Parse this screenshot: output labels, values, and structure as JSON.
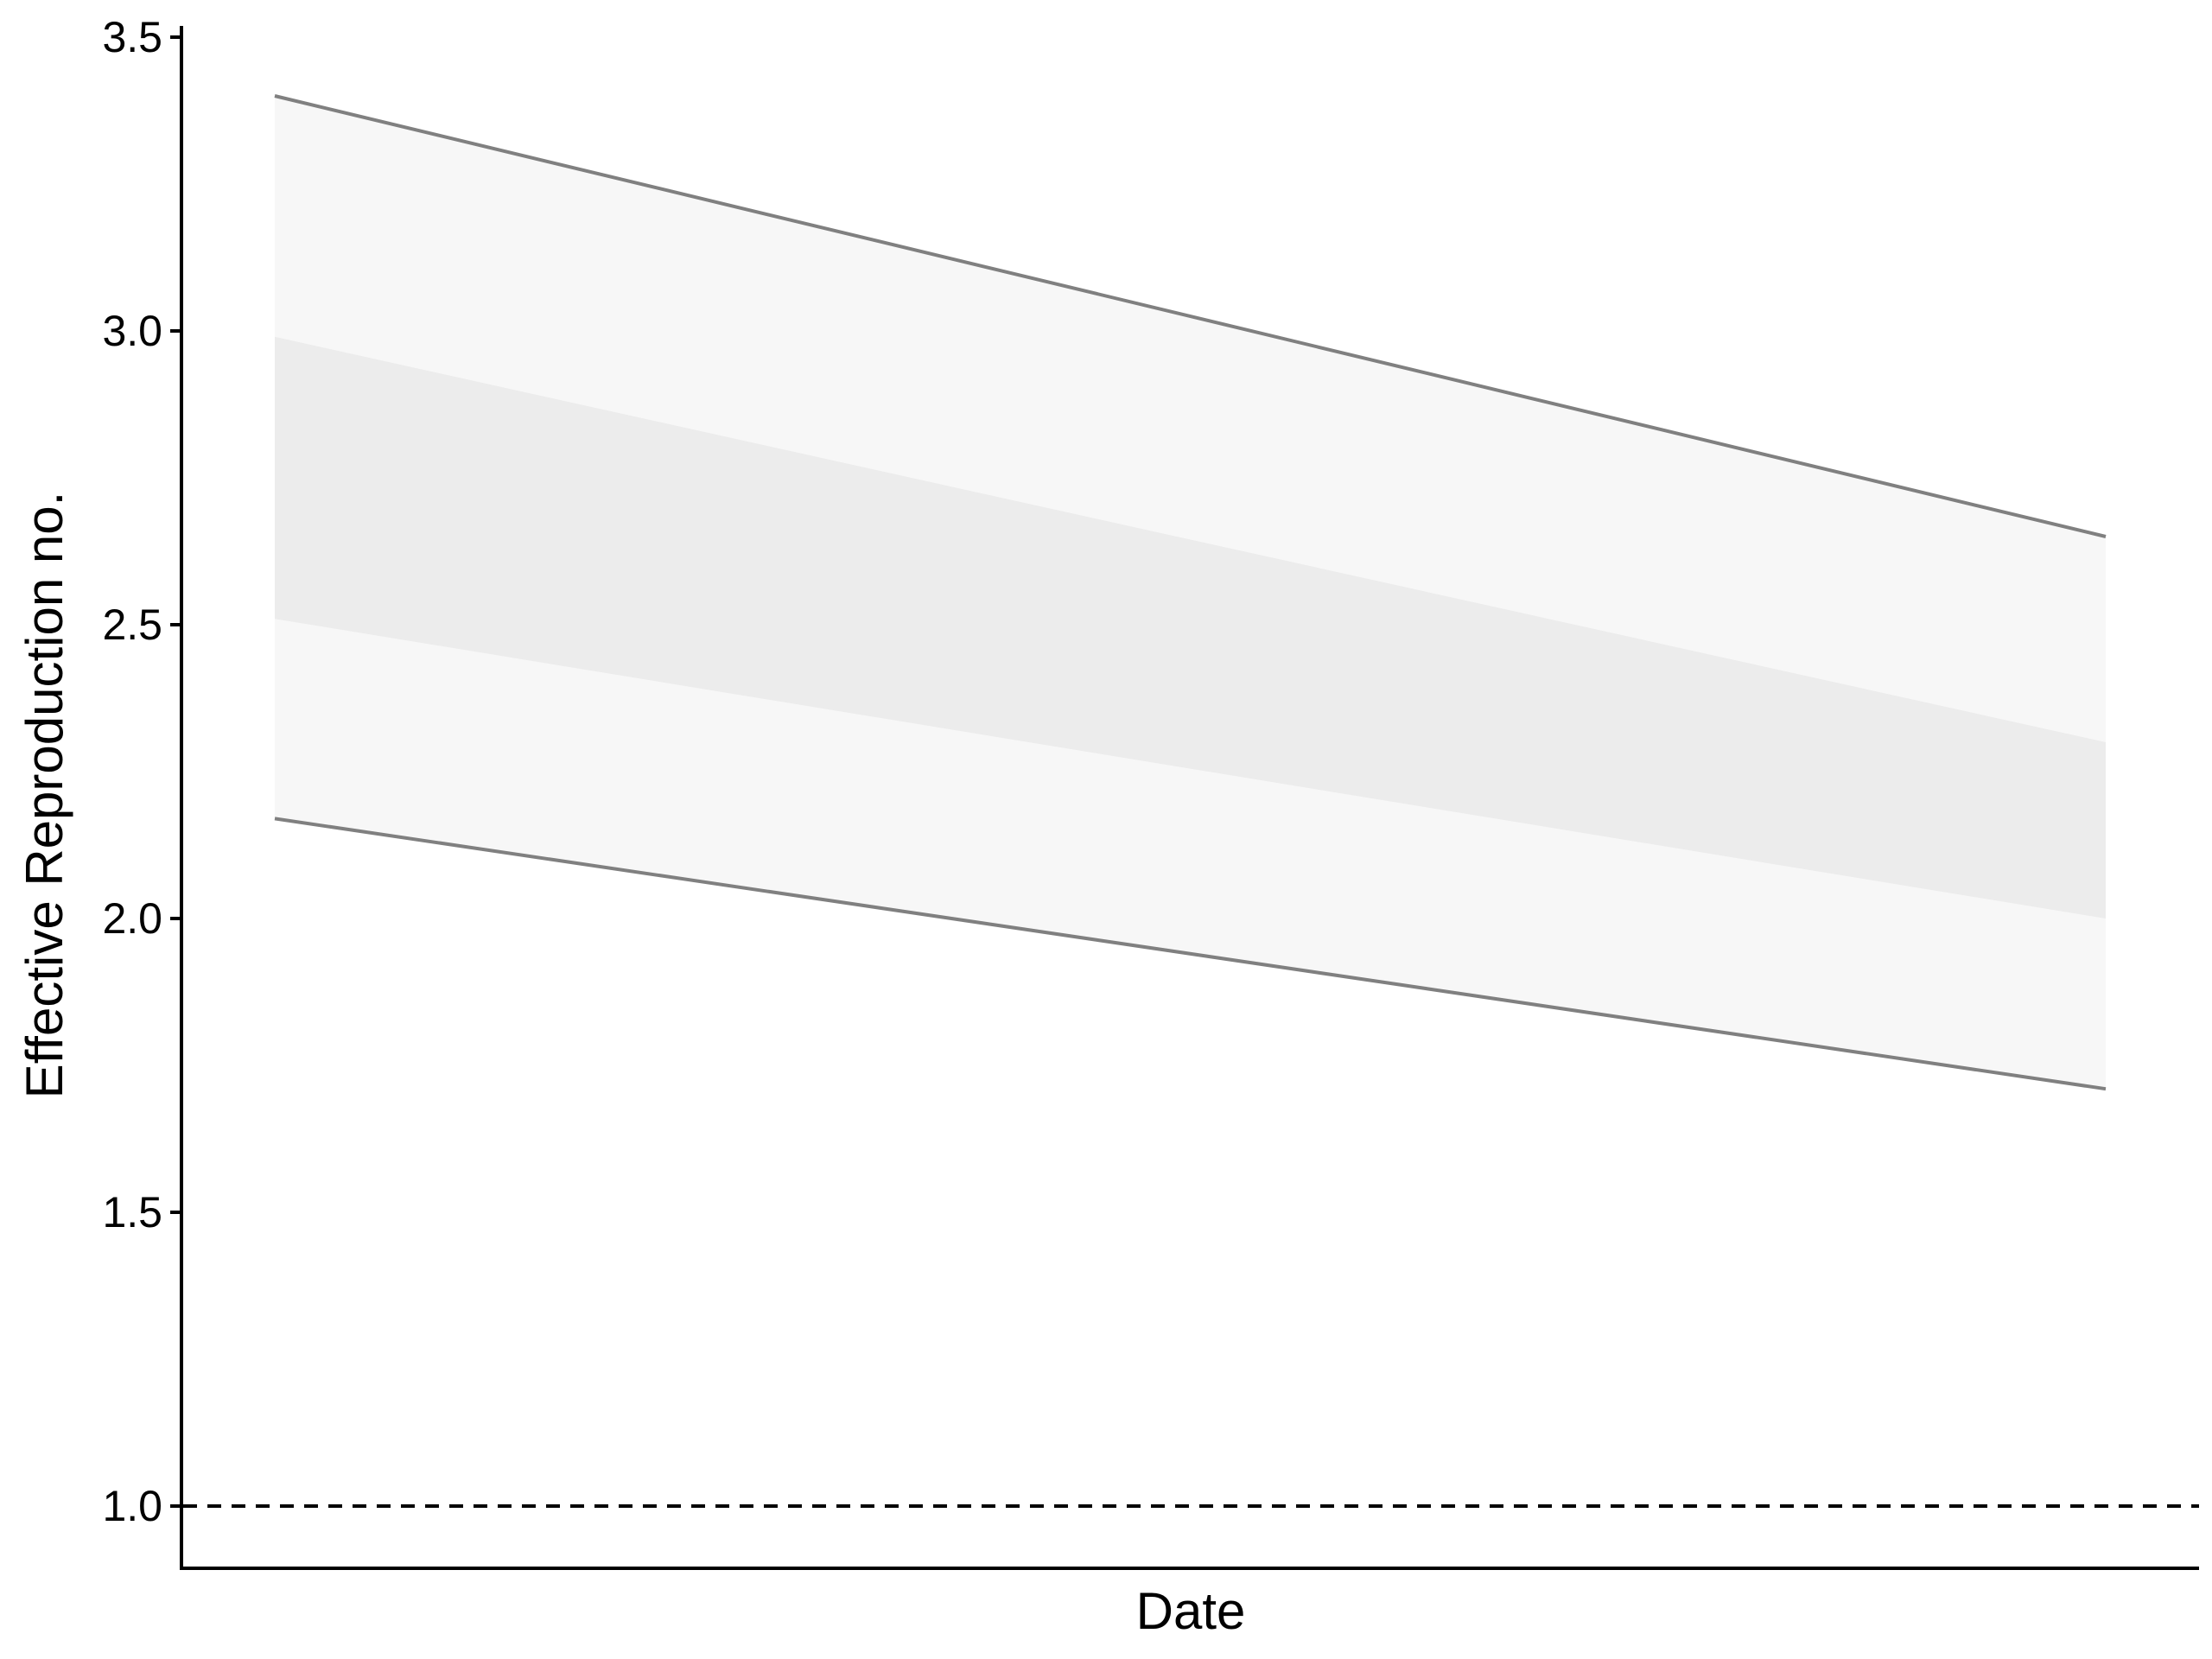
{
  "chart_data": {
    "type": "area",
    "title": "",
    "xlabel": "Date",
    "ylabel": "Effective Reproduction no.",
    "x_tick_labels": [],
    "y_ticks": [
      1.0,
      1.5,
      2.0,
      2.5,
      3.0,
      3.5
    ],
    "y_tick_labels": [
      "1.0",
      "1.5",
      "2.0",
      "2.5",
      "3.0",
      "3.5"
    ],
    "ylim": [
      0.88,
      3.52
    ],
    "x_points": [
      0,
      1
    ],
    "bands": [
      {
        "interval": "outer",
        "lower": [
          2.17,
          1.71
        ],
        "upper": [
          3.4,
          2.65
        ],
        "fill": "#f7f7f7",
        "edge_color": "#808080"
      },
      {
        "interval": "inner",
        "lower": [
          2.51,
          2.0
        ],
        "upper": [
          2.99,
          2.3
        ],
        "fill": "#ececec"
      }
    ],
    "reference_line": {
      "y": 1.0,
      "style": "dashed",
      "color": "#000000"
    },
    "grid": false,
    "legend": "none"
  }
}
